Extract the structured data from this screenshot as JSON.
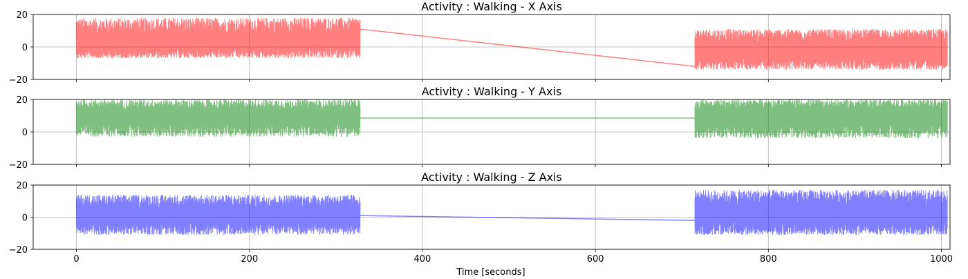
{
  "chart_data": [
    {
      "type": "line",
      "title": "Activity : Walking - X Axis",
      "color": "#ff0000",
      "alpha": 0.5,
      "xlim": [
        -50,
        1010
      ],
      "ylim": [
        -20,
        20
      ],
      "xticks": [
        0,
        200,
        400,
        600,
        800,
        1000
      ],
      "yticks": [
        -20,
        0,
        20
      ],
      "grid": true,
      "segments": [
        {
          "x_range": [
            0,
            328
          ],
          "center_start": 0,
          "center_end": 4,
          "amp_high": 18,
          "amp_low": -7
        },
        {
          "x_range": [
            715,
            1007
          ],
          "center_start": -3,
          "center_end": -1,
          "amp_high": 11,
          "amp_low": -14
        }
      ],
      "gap_line": {
        "from": [
          328,
          11
        ],
        "to": [
          715,
          -12
        ]
      }
    },
    {
      "type": "line",
      "title": "Activity : Walking - Y Axis",
      "color": "#008000",
      "alpha": 0.5,
      "xlim": [
        -50,
        1010
      ],
      "ylim": [
        -20,
        20
      ],
      "xticks": [
        0,
        200,
        400,
        600,
        800,
        1000
      ],
      "yticks": [
        -20,
        0,
        20
      ],
      "grid": true,
      "segments": [
        {
          "x_range": [
            0,
            328
          ],
          "center_start": 10,
          "center_end": 10,
          "amp_high": 20,
          "amp_low": -3
        },
        {
          "x_range": [
            715,
            1007
          ],
          "center_start": 10,
          "center_end": 10,
          "amp_high": 20,
          "amp_low": -4
        }
      ],
      "gap_line": {
        "from": [
          328,
          8.5
        ],
        "to": [
          715,
          8.5
        ]
      }
    },
    {
      "type": "line",
      "title": "Activity : Walking - Z Axis",
      "color": "#0000ff",
      "alpha": 0.5,
      "xlim": [
        -50,
        1010
      ],
      "ylim": [
        -20,
        20
      ],
      "xticks": [
        0,
        200,
        400,
        600,
        800,
        1000
      ],
      "yticks": [
        -20,
        0,
        20
      ],
      "grid": true,
      "segments": [
        {
          "x_range": [
            0,
            328
          ],
          "center_start": 1,
          "center_end": 1,
          "amp_high": 14,
          "amp_low": -11
        },
        {
          "x_range": [
            715,
            1007
          ],
          "center_start": 1,
          "center_end": 1,
          "amp_high": 17,
          "amp_low": -11
        }
      ],
      "gap_line": {
        "from": [
          328,
          1
        ],
        "to": [
          715,
          -2
        ]
      }
    }
  ],
  "xlabel": "Time [seconds]"
}
